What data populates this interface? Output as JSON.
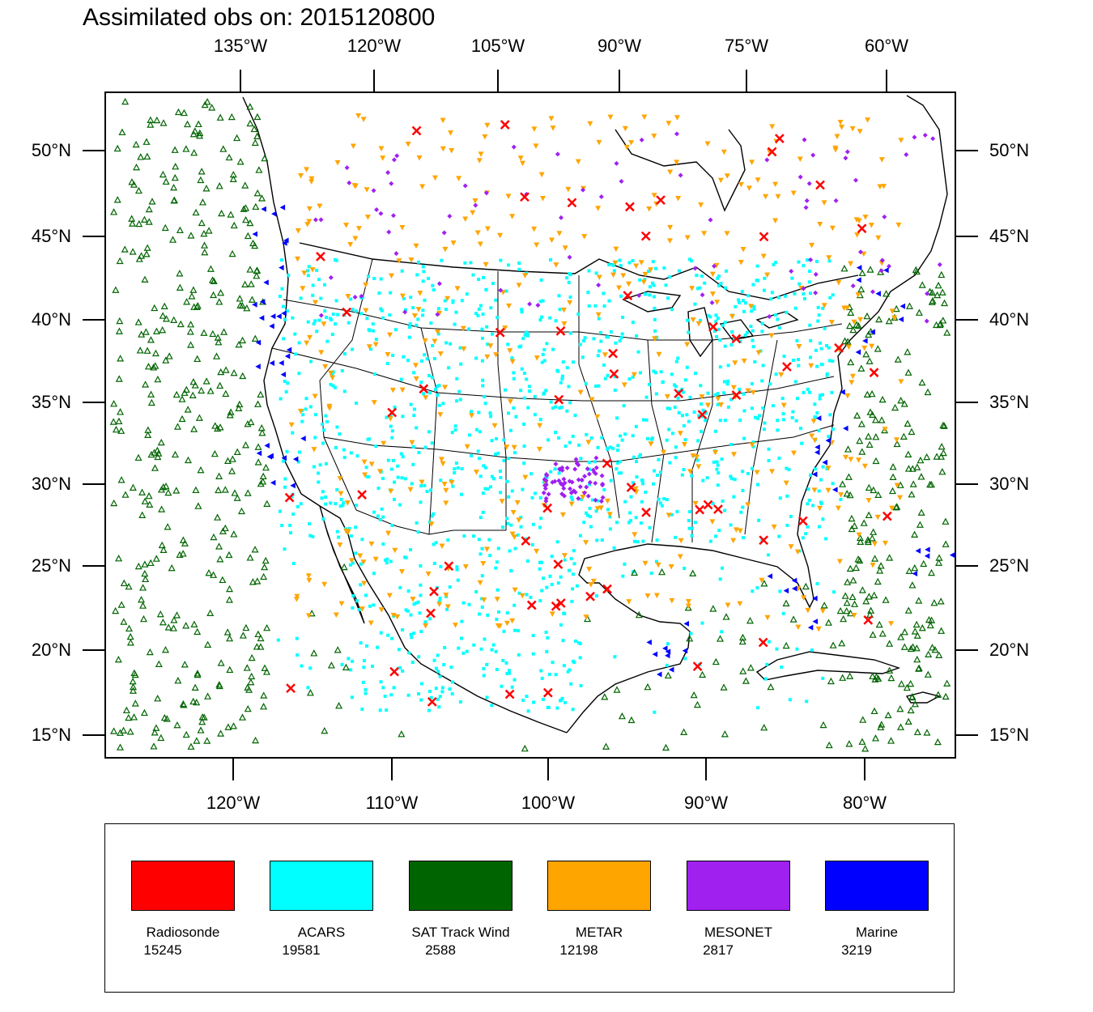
{
  "title": "Assimilated obs on: 2015120800",
  "top_lon_labels": [
    "135°W",
    "120°W",
    "105°W",
    "90°W",
    "75°W",
    "60°W"
  ],
  "bottom_lon_labels": [
    "120°W",
    "110°W",
    "100°W",
    "90°W",
    "80°W"
  ],
  "lat_labels": [
    "50°N",
    "45°N",
    "40°N",
    "35°N",
    "30°N",
    "25°N",
    "20°N",
    "15°N"
  ],
  "legend": [
    {
      "name": "Radiosonde",
      "count": "15245",
      "color": "#ff0000",
      "marker": "cross"
    },
    {
      "name": "ACARS",
      "count": "19581",
      "color": "#00ffff",
      "marker": "square"
    },
    {
      "name": "SAT Track Wind",
      "count": "2588",
      "color": "#006400",
      "marker": "triangle-up-open"
    },
    {
      "name": "METAR",
      "count": "12198",
      "color": "#ffa500",
      "marker": "triangle-down"
    },
    {
      "name": "MESONET",
      "count": "2817",
      "color": "#a020f0",
      "marker": "diamond"
    },
    {
      "name": "Marine",
      "count": "3219",
      "color": "#0000ff",
      "marker": "triangle-left"
    }
  ],
  "colors": {
    "frame": "#000000",
    "background": "#ffffff",
    "coastline": "#000000"
  }
}
